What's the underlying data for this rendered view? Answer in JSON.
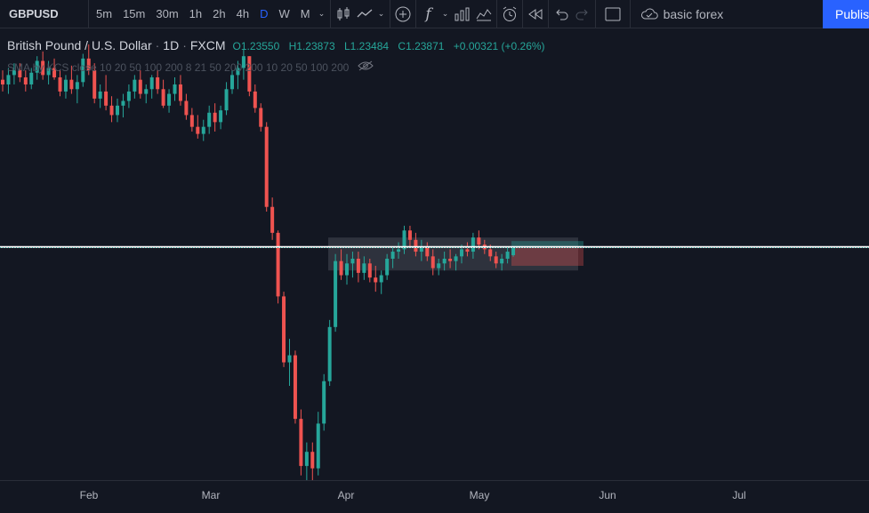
{
  "toolbar": {
    "symbol": "GBPUSD",
    "intervals": [
      "5m",
      "15m",
      "30m",
      "1h",
      "2h",
      "4h",
      "D",
      "W",
      "M"
    ],
    "active_interval": "D",
    "icons": [
      "candles-icon",
      "line-chart-icon",
      "add-compare-icon",
      "indicators-icon",
      "templates-icon",
      "alert-icon",
      "replay-icon",
      "undo-icon",
      "redo-icon",
      "layout-icon",
      "cloud-save-icon"
    ],
    "layout_name": "basic forex",
    "publish_label": "Publish"
  },
  "legend": {
    "title": "British Pound / U.S. Dollar",
    "interval": "1D",
    "exchange": "FXCM",
    "open": "O1.23550",
    "high": "H1.23873",
    "low": "L1.23484",
    "close": "C1.23871",
    "change": "+0.00321 (+0.26%)",
    "indicator_label": "SMA by KCS close 10 20 50 100 200 8 21 50 200 200 10 20 50 100 200"
  },
  "colors": {
    "background": "#131722",
    "up": "#26a69a",
    "down": "#ef5350",
    "accent": "#2962ff"
  },
  "x_axis_labels": [
    "Feb",
    "Mar",
    "Apr",
    "May",
    "Jun",
    "Jul"
  ],
  "chart_data": {
    "type": "candlestick",
    "symbol": "GBPUSD",
    "interval": "1D",
    "horizontal_line": 1.239,
    "last_price": 1.2387,
    "x_ticks": [
      "Feb",
      "Mar",
      "Apr",
      "May",
      "Jun",
      "Jul"
    ],
    "ranges": [
      {
        "kind": "consolidation-box",
        "from_price": 1.243,
        "to_price": 1.229
      },
      {
        "kind": "profit-zone",
        "from_price": 1.2415,
        "to_price": 1.2387
      },
      {
        "kind": "stop-zone",
        "from_price": 1.2387,
        "to_price": 1.231
      }
    ],
    "candles": [
      [
        1.31,
        1.314,
        1.305,
        1.308
      ],
      [
        1.308,
        1.315,
        1.304,
        1.312
      ],
      [
        1.312,
        1.317,
        1.308,
        1.314
      ],
      [
        1.314,
        1.317,
        1.309,
        1.311
      ],
      [
        1.311,
        1.314,
        1.305,
        1.308
      ],
      [
        1.308,
        1.315,
        1.306,
        1.313
      ],
      [
        1.313,
        1.32,
        1.31,
        1.318
      ],
      [
        1.318,
        1.322,
        1.31,
        1.312
      ],
      [
        1.312,
        1.318,
        1.308,
        1.315
      ],
      [
        1.315,
        1.319,
        1.31,
        1.311
      ],
      [
        1.311,
        1.314,
        1.303,
        1.305
      ],
      [
        1.305,
        1.312,
        1.302,
        1.31
      ],
      [
        1.31,
        1.316,
        1.304,
        1.306
      ],
      [
        1.306,
        1.312,
        1.3,
        1.309
      ],
      [
        1.309,
        1.321,
        1.307,
        1.319
      ],
      [
        1.319,
        1.325,
        1.312,
        1.314
      ],
      [
        1.314,
        1.317,
        1.3,
        1.302
      ],
      [
        1.302,
        1.308,
        1.298,
        1.305
      ],
      [
        1.305,
        1.312,
        1.297,
        1.299
      ],
      [
        1.299,
        1.303,
        1.292,
        1.295
      ],
      [
        1.295,
        1.302,
        1.292,
        1.299
      ],
      [
        1.299,
        1.304,
        1.294,
        1.301
      ],
      [
        1.301,
        1.308,
        1.298,
        1.305
      ],
      [
        1.305,
        1.312,
        1.302,
        1.31
      ],
      [
        1.31,
        1.314,
        1.302,
        1.304
      ],
      [
        1.304,
        1.308,
        1.3,
        1.306
      ],
      [
        1.306,
        1.312,
        1.302,
        1.311
      ],
      [
        1.311,
        1.314,
        1.304,
        1.306
      ],
      [
        1.306,
        1.31,
        1.298,
        1.299
      ],
      [
        1.299,
        1.306,
        1.296,
        1.304
      ],
      [
        1.304,
        1.311,
        1.301,
        1.308
      ],
      [
        1.308,
        1.312,
        1.299,
        1.301
      ],
      [
        1.301,
        1.304,
        1.293,
        1.295
      ],
      [
        1.295,
        1.298,
        1.288,
        1.29
      ],
      [
        1.29,
        1.295,
        1.285,
        1.287
      ],
      [
        1.287,
        1.293,
        1.284,
        1.29
      ],
      [
        1.29,
        1.299,
        1.287,
        1.296
      ],
      [
        1.296,
        1.3,
        1.288,
        1.292
      ],
      [
        1.292,
        1.299,
        1.289,
        1.297
      ],
      [
        1.297,
        1.309,
        1.295,
        1.306
      ],
      [
        1.306,
        1.314,
        1.304,
        1.312
      ],
      [
        1.312,
        1.318,
        1.306,
        1.315
      ],
      [
        1.315,
        1.323,
        1.31,
        1.32
      ],
      [
        1.32,
        1.32,
        1.303,
        1.305
      ],
      [
        1.305,
        1.308,
        1.296,
        1.298
      ],
      [
        1.298,
        1.3,
        1.288,
        1.29
      ],
      [
        1.29,
        1.292,
        1.254,
        1.256
      ],
      [
        1.256,
        1.26,
        1.242,
        1.245
      ],
      [
        1.245,
        1.246,
        1.215,
        1.218
      ],
      [
        1.218,
        1.22,
        1.188,
        1.19
      ],
      [
        1.19,
        1.2,
        1.18,
        1.193
      ],
      [
        1.193,
        1.195,
        1.164,
        1.166
      ],
      [
        1.166,
        1.17,
        1.142,
        1.146
      ],
      [
        1.146,
        1.156,
        1.14,
        1.152
      ],
      [
        1.152,
        1.156,
        1.14,
        1.145
      ],
      [
        1.145,
        1.169,
        1.142,
        1.164
      ],
      [
        1.164,
        1.185,
        1.161,
        1.182
      ],
      [
        1.182,
        1.208,
        1.18,
        1.205
      ],
      [
        1.205,
        1.236,
        1.203,
        1.233
      ],
      [
        1.233,
        1.238,
        1.225,
        1.227
      ],
      [
        1.227,
        1.236,
        1.223,
        1.232
      ],
      [
        1.232,
        1.237,
        1.226,
        1.234
      ],
      [
        1.234,
        1.237,
        1.224,
        1.228
      ],
      [
        1.228,
        1.235,
        1.225,
        1.232
      ],
      [
        1.232,
        1.234,
        1.224,
        1.226
      ],
      [
        1.226,
        1.231,
        1.22,
        1.224
      ],
      [
        1.224,
        1.229,
        1.219,
        1.227
      ],
      [
        1.227,
        1.236,
        1.225,
        1.234
      ],
      [
        1.234,
        1.239,
        1.23,
        1.237
      ],
      [
        1.237,
        1.241,
        1.234,
        1.238
      ],
      [
        1.238,
        1.248,
        1.236,
        1.246
      ],
      [
        1.246,
        1.248,
        1.239,
        1.242
      ],
      [
        1.242,
        1.245,
        1.235,
        1.237
      ],
      [
        1.237,
        1.242,
        1.233,
        1.239
      ],
      [
        1.239,
        1.241,
        1.233,
        1.235
      ],
      [
        1.235,
        1.238,
        1.227,
        1.23
      ],
      [
        1.23,
        1.234,
        1.227,
        1.232
      ],
      [
        1.232,
        1.237,
        1.229,
        1.234
      ],
      [
        1.234,
        1.238,
        1.23,
        1.233
      ],
      [
        1.233,
        1.236,
        1.229,
        1.235
      ],
      [
        1.235,
        1.24,
        1.232,
        1.238
      ],
      [
        1.238,
        1.241,
        1.235,
        1.237
      ],
      [
        1.237,
        1.245,
        1.234,
        1.243
      ],
      [
        1.243,
        1.246,
        1.238,
        1.24
      ],
      [
        1.24,
        1.242,
        1.236,
        1.238
      ],
      [
        1.238,
        1.24,
        1.233,
        1.235
      ],
      [
        1.235,
        1.237,
        1.23,
        1.232
      ],
      [
        1.232,
        1.236,
        1.229,
        1.234
      ],
      [
        1.234,
        1.239,
        1.232,
        1.237
      ],
      [
        1.2355,
        1.23873,
        1.23484,
        1.23871
      ]
    ]
  }
}
